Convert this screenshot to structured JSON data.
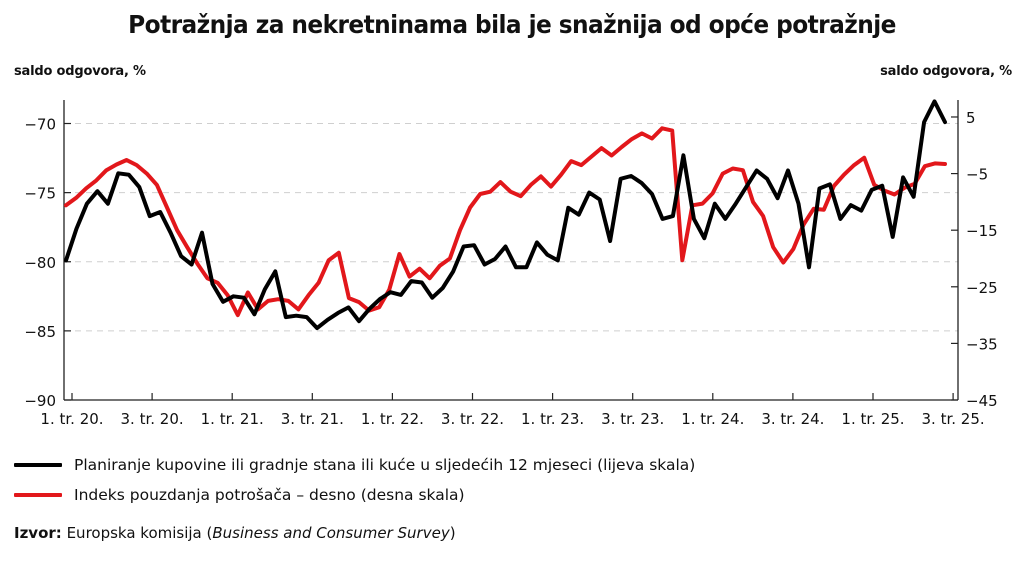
{
  "title": "Potražnja za nekretninama bila je snažnija od opće potražnje",
  "left_unit": "saldo odgovora, %",
  "right_unit": "saldo odgovora, %",
  "source": {
    "label": "Izvor:",
    "text": "Europska komisija (",
    "italic": "Business and Consumer Survey",
    "end": ")"
  },
  "colors": {
    "black_series": "#000000",
    "red_series": "#e2171b",
    "grid": "#cfcfcf"
  },
  "chart_data": {
    "type": "line",
    "x_tick_labels": [
      "1. tr. 20.",
      "3. tr. 20.",
      "1. tr. 21.",
      "3. tr. 21.",
      "1. tr. 22.",
      "3. tr. 22.",
      "1. tr. 23.",
      "3. tr. 23.",
      "1. tr. 24.",
      "3. tr. 24.",
      "1. tr. 25.",
      "3. tr. 25."
    ],
    "y_left": {
      "ticks": [
        -70,
        -75,
        -80,
        -85,
        -90
      ],
      "lim": [
        -90,
        -68.3
      ]
    },
    "y_right": {
      "ticks": [
        5,
        -5,
        -15,
        -25,
        -35,
        -45
      ],
      "lim": [
        -45,
        8
      ]
    },
    "grid": "horizontal dashed",
    "legend_position": "bottom",
    "series": [
      {
        "name": "Planiranje kupovine ili gradnje stana ili kuće u sljedećih 12 mjeseci (lijeva skala)",
        "axis": "left",
        "color": "#000000",
        "values": [
          -79.9,
          -77.6,
          -75.8,
          -74.9,
          -75.8,
          -73.6,
          -73.7,
          -74.6,
          -76.7,
          -76.4,
          -77.9,
          -79.6,
          -80.2,
          -77.9,
          -81.6,
          -82.9,
          -82.5,
          -82.6,
          -83.8,
          -82.0,
          -80.7,
          -84.0,
          -83.9,
          -84.0,
          -84.8,
          -84.2,
          -83.7,
          -83.3,
          -84.3,
          -83.4,
          -82.7,
          -82.2,
          -82.4,
          -81.4,
          -81.5,
          -82.6,
          -81.9,
          -80.7,
          -78.9,
          -78.8,
          -80.2,
          -79.8,
          -78.9,
          -80.4,
          -80.4,
          -78.6,
          -79.5,
          -79.9,
          -76.1,
          -76.6,
          -75.0,
          -75.5,
          -78.5,
          -74.0,
          -73.8,
          -74.3,
          -75.1,
          -76.9,
          -76.7,
          -72.3,
          -76.9,
          -78.3,
          -75.8,
          -76.9,
          -75.8,
          -74.6,
          -73.4,
          -74.0,
          -75.4,
          -73.4,
          -75.8,
          -80.4,
          -74.7,
          -74.4,
          -76.9,
          -75.9,
          -76.3,
          -74.8,
          -74.5,
          -78.2,
          -73.9,
          -75.3,
          -69.9,
          -68.4,
          -69.9
        ]
      },
      {
        "name": "Indeks pouzdanja potrošača – desno (desna skala)",
        "axis": "right",
        "color": "#e2171b",
        "values": [
          -10.6,
          -9.3,
          -7.6,
          -6.2,
          -4.4,
          -3.4,
          -2.6,
          -3.5,
          -5.0,
          -7.0,
          -11.0,
          -15.0,
          -18.0,
          -20.9,
          -23.5,
          -24.3,
          -26.5,
          -30.0,
          -26.0,
          -29.0,
          -27.5,
          -27.2,
          -27.5,
          -29.0,
          -26.5,
          -24.3,
          -20.3,
          -19.0,
          -27.0,
          -27.7,
          -29.2,
          -28.6,
          -25.5,
          -19.2,
          -23.2,
          -21.8,
          -23.5,
          -21.3,
          -20.0,
          -15.0,
          -11.0,
          -8.6,
          -8.2,
          -6.5,
          -8.2,
          -9.0,
          -7.0,
          -5.5,
          -7.3,
          -5.2,
          -2.8,
          -3.5,
          -2.0,
          -0.5,
          -1.8,
          -0.3,
          1.1,
          2.1,
          1.2,
          3.0,
          2.6,
          -20.3,
          -10.6,
          -10.3,
          -8.5,
          -5.0,
          -4.1,
          -4.4,
          -10.0,
          -12.5,
          -18.0,
          -20.7,
          -18.3,
          -14.0,
          -11.2,
          -11.4,
          -7.2,
          -5.2,
          -3.5,
          -2.2,
          -7.0,
          -8.0,
          -8.7,
          -7.5,
          -6.8,
          -3.7,
          -3.2,
          -3.3
        ]
      }
    ]
  }
}
